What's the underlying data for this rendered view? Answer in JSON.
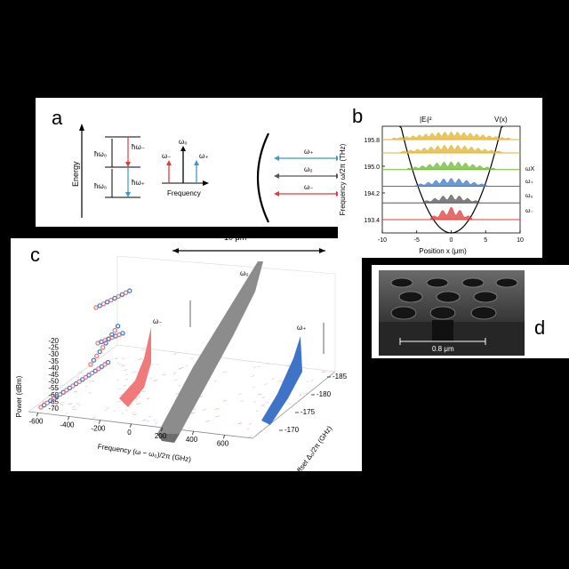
{
  "labels": {
    "a": "a",
    "b": "b",
    "c": "c",
    "d": "d"
  },
  "panel_a": {
    "energy_axis": "Energy",
    "levels": [
      "ħω₀",
      "ħω₀"
    ],
    "transitions": [
      "ħω₋",
      "ħω₊"
    ],
    "freq_axis": "Frequency",
    "lines": [
      "ω₋",
      "ω₀",
      "ω₊"
    ],
    "modes": [
      "ω₊",
      "ω₀",
      "ω₋"
    ]
  },
  "panel_b": {
    "ylabel": "Frequency ω/2π (THz)",
    "xlabel": "Position x (μm)",
    "field_label": "|Eₗ|²",
    "potential_label": "V(x)",
    "right_labels": [
      "ωX",
      "ω₊",
      "ω₀",
      "ω₋"
    ]
  },
  "scale_bar": "10 μm",
  "panel_c": {
    "zlabel": "Power (dBm)",
    "xlabel": "Frequency (ω − ω₀)/2π (GHz)",
    "ylabel": "Pump offset Δ₀/2π (GHz)",
    "peak_labels": {
      "center": "ω₀",
      "minus": "ω₋",
      "plus": "ω₊"
    }
  },
  "panel_d": {
    "scale": "0.8 μm"
  },
  "chart_data": [
    {
      "type": "line",
      "xlabel": "Position x (μm)",
      "ylabel": "Frequency ω/2π (THz)",
      "xlim": [
        -10,
        10
      ],
      "ylim": [
        193.0,
        196.2
      ],
      "x_ticks": [
        -10,
        -5,
        0,
        5,
        10
      ],
      "y_ticks": [
        193.4,
        194.2,
        195.0,
        195.8
      ],
      "series": [
        {
          "name": "ω₋",
          "level": 193.4,
          "color": "#e23b3b"
        },
        {
          "name": "ω₀",
          "level": 193.9,
          "color": "#555555"
        },
        {
          "name": "ω₊",
          "level": 194.4,
          "color": "#3a78c9"
        },
        {
          "name": "ωX",
          "level": 194.9,
          "color": "#6db833"
        },
        {
          "level": 195.4,
          "color": "#e0b32c"
        },
        {
          "level": 195.8,
          "color": "#e0b32c"
        }
      ]
    },
    {
      "type": "area",
      "xlabel": "Frequency (ω − ω₀)/2π (GHz)",
      "ylabel": "Pump offset Δ₀/2π (GHz)",
      "zlabel": "Power (dBm)",
      "x_ticks": [
        -600,
        -400,
        -200,
        0,
        200,
        400,
        600
      ],
      "y_ticks": [
        -170,
        -175,
        -180,
        -185
      ],
      "z_ticks": [
        -20,
        -25,
        -30,
        -35,
        -40,
        -45,
        -50,
        -55,
        -60,
        -65,
        -70
      ],
      "series": [
        {
          "name": "ω₋",
          "color": "#f07070"
        },
        {
          "name": "ω₀",
          "color": "#8c8c8c"
        },
        {
          "name": "ω₊",
          "color": "#3f73c7"
        }
      ]
    }
  ]
}
